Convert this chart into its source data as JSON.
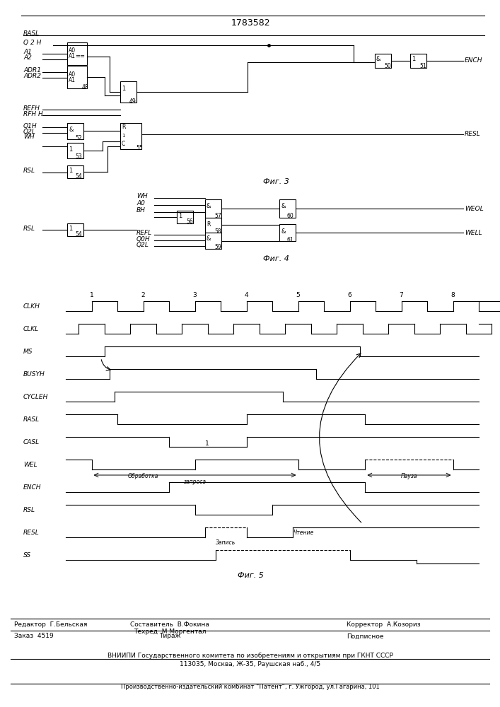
{
  "title": "1783582",
  "fig3_label": "Фиг. 3",
  "fig4_label": "Фиг. 4",
  "fig5_label": "Фиг. 5",
  "footer_editor": "Редактор  Г.Бельская",
  "footer_sostavitel": "Составитель  В.Фокина",
  "footer_tehred": "Техред  М.Моргентал",
  "footer_corrector": "Корректор  А.Козориз",
  "footer_order": "Заказ  4519",
  "footer_tirazh": "Тираж",
  "footer_podpisnoe": "Подписное",
  "footer_vniiipi": "ВНИИПИ Государственного комитета по изобретениям и открытиям при ГКНТ СССР",
  "footer_address": "113035, Москва, Ж-35, Раушская наб., 4/5",
  "footer_production": "Производственно-издательский комбинат “Патент”, г. Ужгород, ул.Гагарина, 101"
}
